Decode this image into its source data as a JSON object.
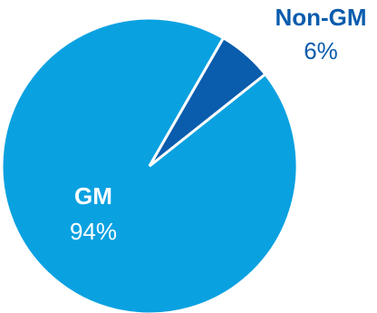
{
  "chart_data": {
    "type": "pie",
    "slices": [
      {
        "label": "GM",
        "value": 94,
        "display": "94%",
        "color": "#0AA1E1",
        "label_color": "#ffffff"
      },
      {
        "label": "Non-GM",
        "value": 6,
        "display": "6%",
        "color": "#0A5CAD",
        "label_color": "#0A5CAD"
      }
    ],
    "legend": "none",
    "start_angle_deg": 30,
    "direction": "clockwise"
  }
}
